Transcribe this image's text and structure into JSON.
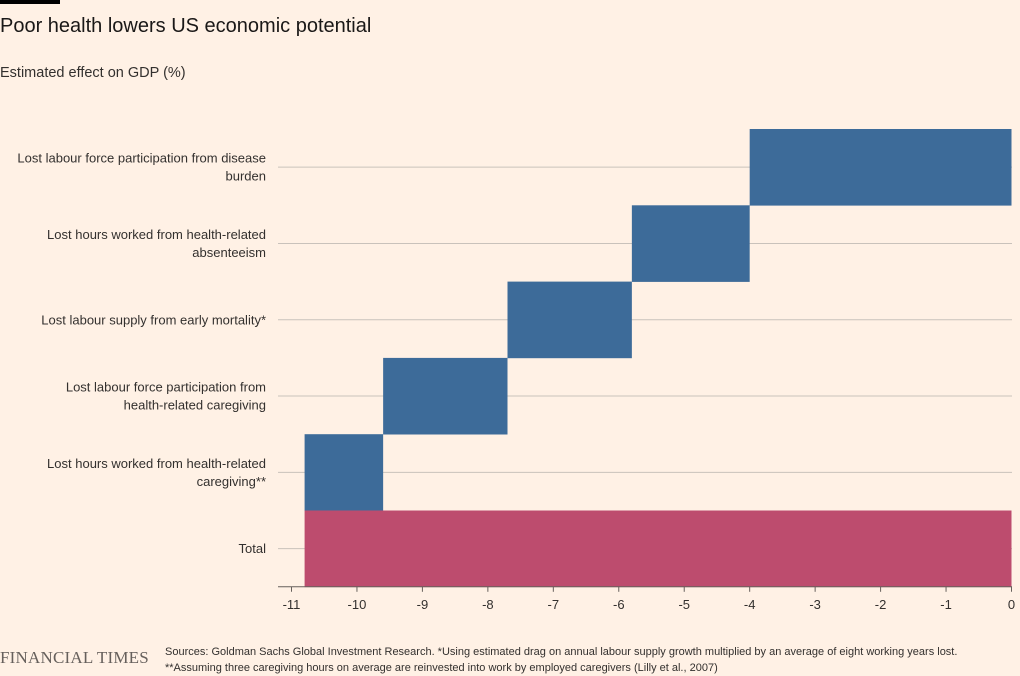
{
  "header": {
    "title": "Poor health lowers US economic potential",
    "subtitle": "Estimated effect on GDP (%)"
  },
  "footer": {
    "logo": "FINANCIAL TIMES",
    "source": "Sources: Goldman Sachs Global Investment Research. *Using estimated drag on annual labour supply growth multiplied by an average of eight working years lost. **Assuming three caregiving hours on average are reinvested into work by employed caregivers (Lilly et al., 2007)"
  },
  "colors": {
    "background": "#fff1e5",
    "component_bar": "#3d6b99",
    "total_bar": "#bd4c6e",
    "gridline": "#c9c2bb"
  },
  "chart_data": {
    "type": "bar",
    "subtype": "waterfall-horizontal",
    "title": "Poor health lowers US economic potential",
    "subtitle": "Estimated effect on GDP (%)",
    "xlabel": "",
    "ylabel": "",
    "xlim": [
      -11,
      0
    ],
    "xticks": [
      -11,
      -10,
      -9,
      -8,
      -7,
      -6,
      -5,
      -4,
      -3,
      -2,
      -1,
      0
    ],
    "grid": true,
    "legend": "none",
    "categories": [
      [
        "Lost labour force participation from disease",
        "burden"
      ],
      [
        "Lost hours worked from health-related",
        "absenteeism"
      ],
      [
        "Lost labour supply from early mortality*"
      ],
      [
        "Lost labour force participation from",
        "health-related caregiving"
      ],
      [
        "Lost hours worked from health-related",
        "caregiving**"
      ],
      [
        "Total"
      ]
    ],
    "values": [
      -4.0,
      -1.8,
      -1.9,
      -1.9,
      -1.2,
      -10.8
    ],
    "is_total": [
      false,
      false,
      false,
      false,
      false,
      true
    ]
  }
}
